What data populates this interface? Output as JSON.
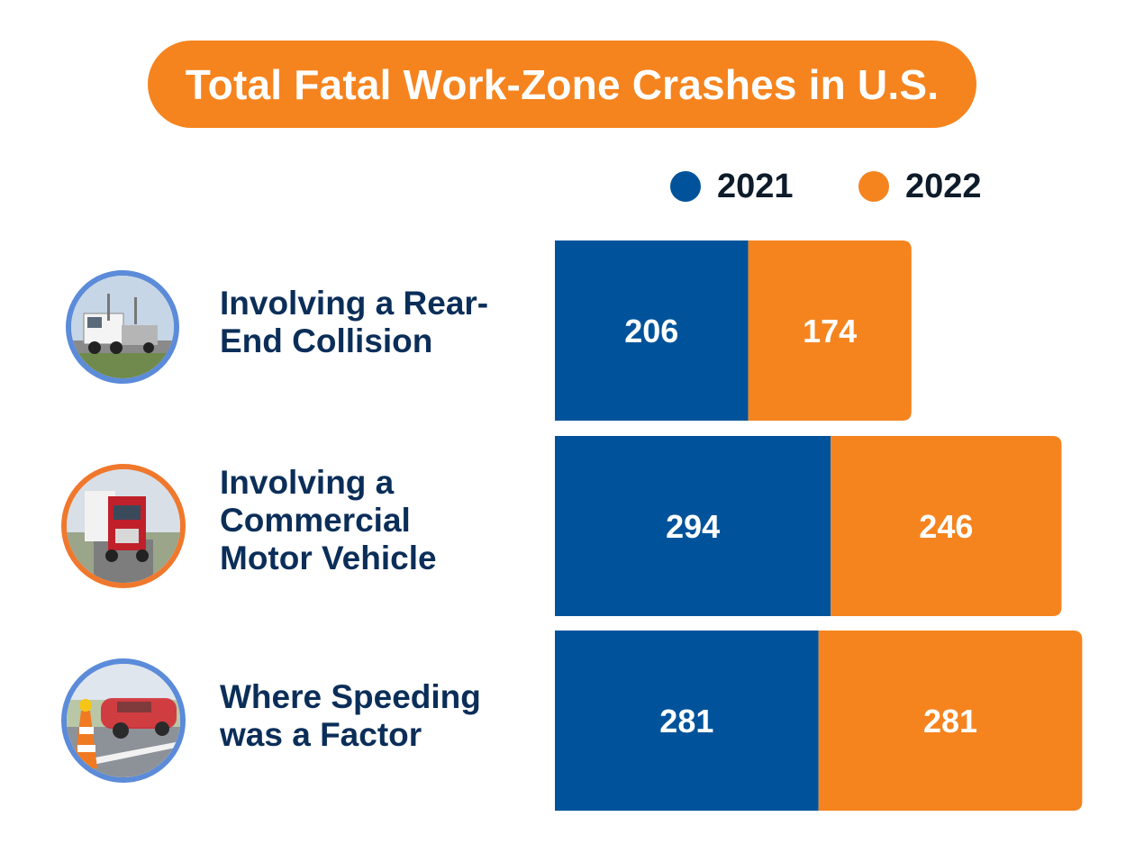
{
  "chart_data": {
    "type": "bar",
    "orientation": "horizontal-stacked",
    "title": "Total Fatal Work-Zone Crashes in U.S.",
    "categories": [
      [
        "Involving a Rear-",
        "End Collision"
      ],
      [
        "Involving a",
        "Commercial",
        "Motor Vehicle"
      ],
      [
        "Where Speeding",
        "was a Factor"
      ]
    ],
    "series": [
      {
        "name": "2021",
        "color": "#00539B",
        "values": [
          206,
          294,
          281
        ]
      },
      {
        "name": "2022",
        "color": "#F5841F",
        "values": [
          174,
          246,
          281
        ]
      }
    ],
    "legend": "top-right",
    "grid": false
  },
  "photos": [
    {
      "icon": "rear-end-collision-photo",
      "ring_color": "#5B8BD9"
    },
    {
      "icon": "commercial-truck-photo",
      "ring_color": "#F0782D"
    },
    {
      "icon": "speeding-car-photo",
      "ring_color": "#5B8BD9"
    }
  ],
  "colors": {
    "title_bg": "#F5841F",
    "label_text": "#0B2E59"
  }
}
